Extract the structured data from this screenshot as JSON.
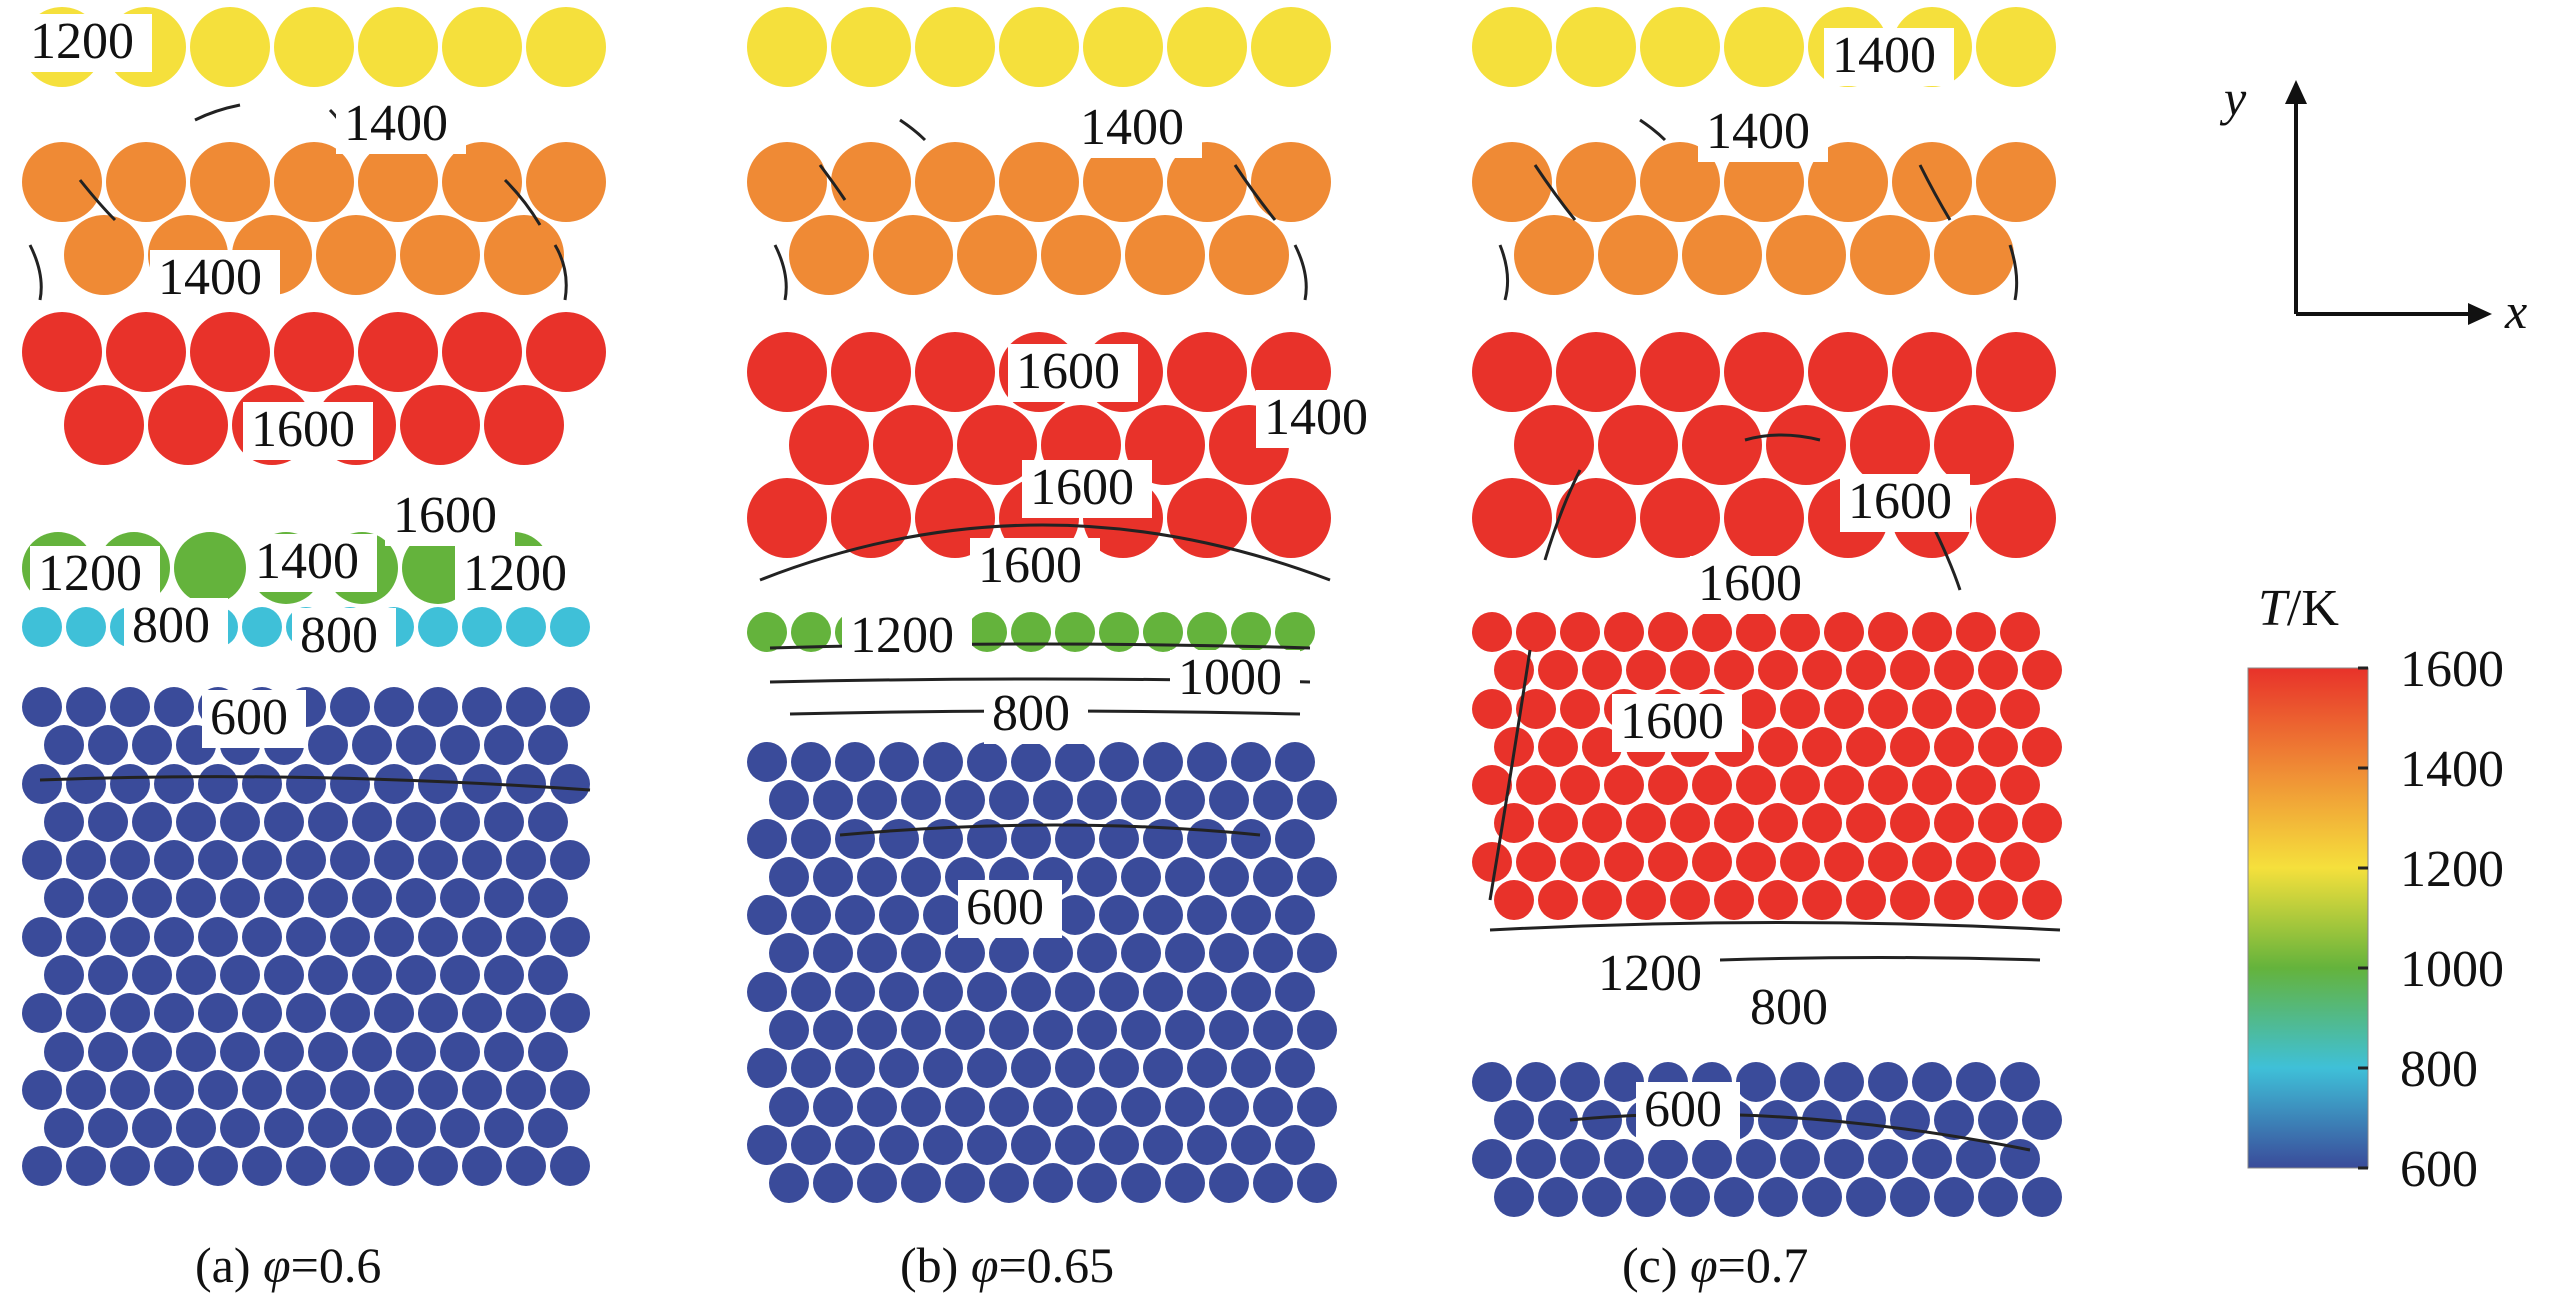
{
  "panels": [
    {
      "caption_prefix": "(a)",
      "caption_symbol": "φ",
      "caption_value": "=0.6",
      "contour_labels": [
        "1200",
        "1400",
        "1400",
        "1600",
        "1600",
        "1200",
        "1400",
        "1200",
        "800",
        "800",
        "600"
      ]
    },
    {
      "caption_prefix": "(b)",
      "caption_symbol": "φ",
      "caption_value": "=0.65",
      "contour_labels": [
        "1400",
        "1600",
        "1400",
        "1600",
        "1600",
        "1200",
        "1000",
        "800",
        "600"
      ]
    },
    {
      "caption_prefix": "(c)",
      "caption_symbol": "φ",
      "caption_value": "=0.7",
      "contour_labels": [
        "1400",
        "1400",
        "1600",
        "1600",
        "1600",
        "1200",
        "800",
        "600"
      ]
    }
  ],
  "axes_indicator": {
    "x_label": "x",
    "y_label": "y"
  },
  "colorbar": {
    "title_symbol": "T",
    "title_unit": "/K",
    "ticks": [
      "1600",
      "1400",
      "1200",
      "1000",
      "800",
      "600"
    ],
    "tick_values": [
      1600,
      1400,
      1200,
      1000,
      800,
      600
    ],
    "range": [
      600,
      1600
    ],
    "colors": [
      "#e8322a",
      "#ef8a35",
      "#f5e03c",
      "#64b33c",
      "#3fc0d8",
      "#3a4b9a"
    ]
  }
}
